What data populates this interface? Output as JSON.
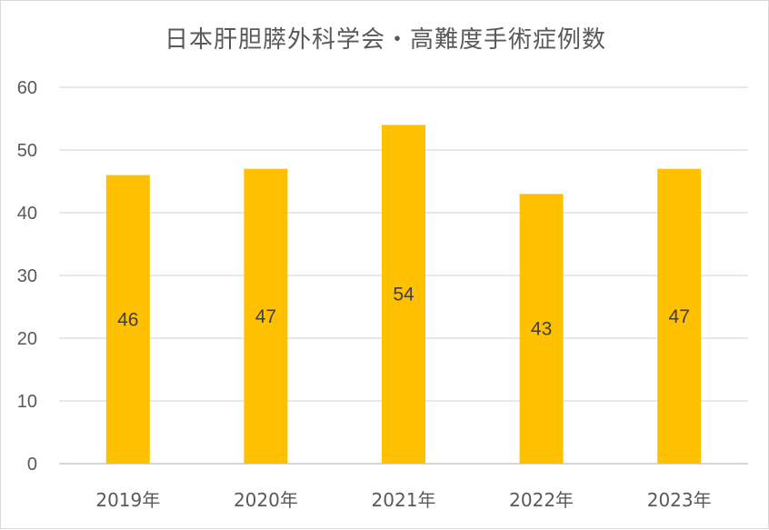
{
  "chart_data": {
    "type": "bar",
    "title": "日本肝胆膵外科学会・高難度手術症例数",
    "categories": [
      "2019年",
      "2020年",
      "2021年",
      "2022年",
      "2023年"
    ],
    "values": [
      46,
      47,
      54,
      43,
      47
    ],
    "xlabel": "",
    "ylabel": "",
    "ylim": [
      0,
      60
    ],
    "yticks": [
      0,
      10,
      20,
      30,
      40,
      50,
      60
    ],
    "grid": true,
    "legend": "none",
    "data_labels": true,
    "colors": {
      "bar": "#FFC000",
      "grid": "#d9d9d9",
      "axis": "#bfbfbf",
      "text": "#595959"
    }
  }
}
